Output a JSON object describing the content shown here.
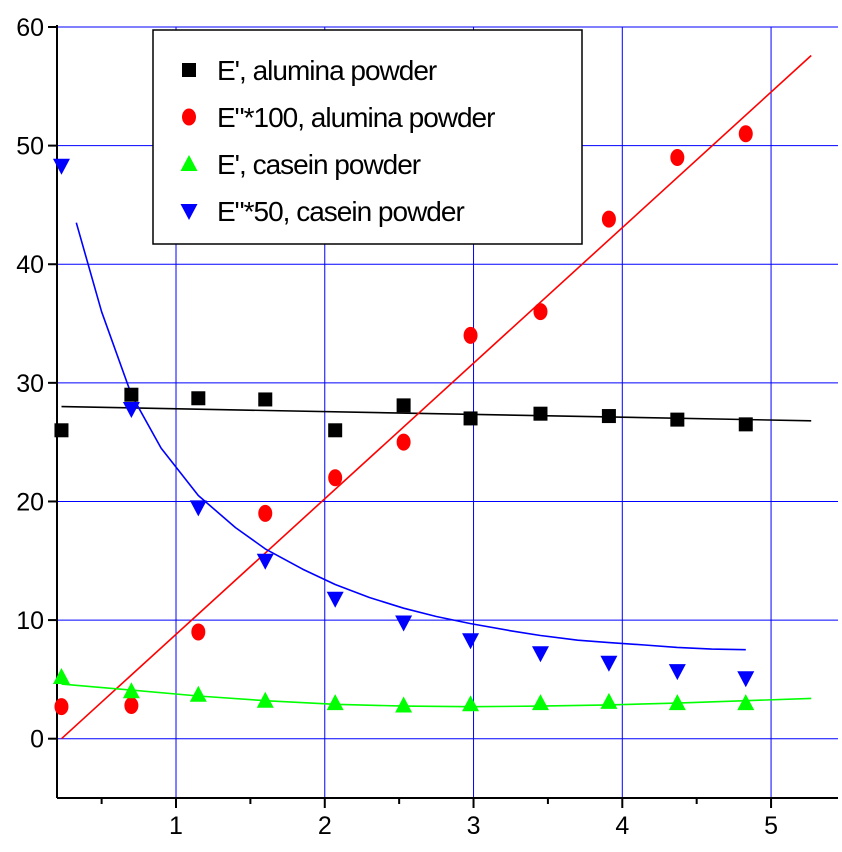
{
  "chart_data": {
    "type": "scatter",
    "title": "",
    "xlabel": "",
    "ylabel": "",
    "xlim": [
      0.2,
      5.45
    ],
    "ylim": [
      -5,
      60
    ],
    "x_ticks": [
      1,
      2,
      3,
      4,
      5
    ],
    "x_minor_ticks": [
      0.5,
      1.5,
      2.5,
      3.5,
      4.5
    ],
    "y_ticks": [
      0,
      10,
      20,
      30,
      40,
      50,
      60
    ],
    "grid": true,
    "grid_color": "#0000ff",
    "legend_position": "top-center",
    "series": [
      {
        "name": "E', alumina powder",
        "marker": "square",
        "color": "#000000",
        "x": [
          0.23,
          0.7,
          1.15,
          1.6,
          2.07,
          2.53,
          2.98,
          3.45,
          3.91,
          4.37,
          4.83
        ],
        "y": [
          26.0,
          29.0,
          28.7,
          28.6,
          26.0,
          28.1,
          27.0,
          27.4,
          27.2,
          26.9,
          26.5
        ],
        "fit": {
          "kind": "line",
          "color": "#000000",
          "x": [
            0.23,
            5.27
          ],
          "y": [
            28.0,
            26.8
          ]
        }
      },
      {
        "name": "E\"*100, alumina powder",
        "marker": "circle",
        "color": "#ff0000",
        "x": [
          0.23,
          0.7,
          1.15,
          1.6,
          2.07,
          2.53,
          2.98,
          3.45,
          3.91,
          4.37,
          4.83
        ],
        "y": [
          2.7,
          2.8,
          9.0,
          19.0,
          22.0,
          25.0,
          34.0,
          36.0,
          43.8,
          49.0,
          51.0
        ],
        "fit": {
          "kind": "line",
          "color": "#ff0000",
          "x": [
            0.23,
            5.27
          ],
          "y": [
            0.0,
            57.6
          ]
        }
      },
      {
        "name": "E', casein powder",
        "marker": "triangle-up",
        "color": "#00ff00",
        "x": [
          0.23,
          0.7,
          1.15,
          1.6,
          2.07,
          2.53,
          2.98,
          3.45,
          3.91,
          4.37,
          4.83
        ],
        "y": [
          5.2,
          4.0,
          3.7,
          3.2,
          3.0,
          2.8,
          2.9,
          3.0,
          3.1,
          3.0,
          3.0
        ],
        "fit": {
          "kind": "curve",
          "color": "#00ff00",
          "x": [
            0.23,
            0.7,
            1.15,
            1.6,
            2.07,
            2.53,
            2.98,
            3.45,
            3.91,
            4.37,
            4.83,
            5.27
          ],
          "y": [
            4.6,
            4.1,
            3.6,
            3.2,
            2.9,
            2.75,
            2.7,
            2.75,
            2.85,
            3.0,
            3.2,
            3.4
          ]
        }
      },
      {
        "name": "E\"*50, casein powder",
        "marker": "triangle-down",
        "color": "#0000ff",
        "x": [
          0.23,
          0.7,
          1.15,
          1.6,
          2.07,
          2.53,
          2.98,
          3.45,
          3.91,
          4.37,
          4.83
        ],
        "y": [
          48.3,
          27.8,
          19.5,
          15.0,
          11.8,
          9.8,
          8.3,
          7.2,
          6.4,
          5.7,
          5.1
        ],
        "fit": {
          "kind": "curve",
          "color": "#0000ff",
          "x": [
            0.33,
            0.5,
            0.7,
            0.9,
            1.15,
            1.4,
            1.6,
            1.85,
            2.07,
            2.3,
            2.53,
            2.75,
            2.98,
            3.25,
            3.45,
            3.7,
            3.91,
            4.15,
            4.37,
            4.6,
            4.83
          ],
          "y": [
            43.5,
            36.0,
            29.0,
            24.5,
            20.5,
            17.8,
            16.0,
            14.3,
            13.0,
            11.9,
            11.0,
            10.3,
            9.7,
            9.1,
            8.7,
            8.3,
            8.1,
            7.9,
            7.7,
            7.55,
            7.5
          ]
        }
      }
    ]
  }
}
